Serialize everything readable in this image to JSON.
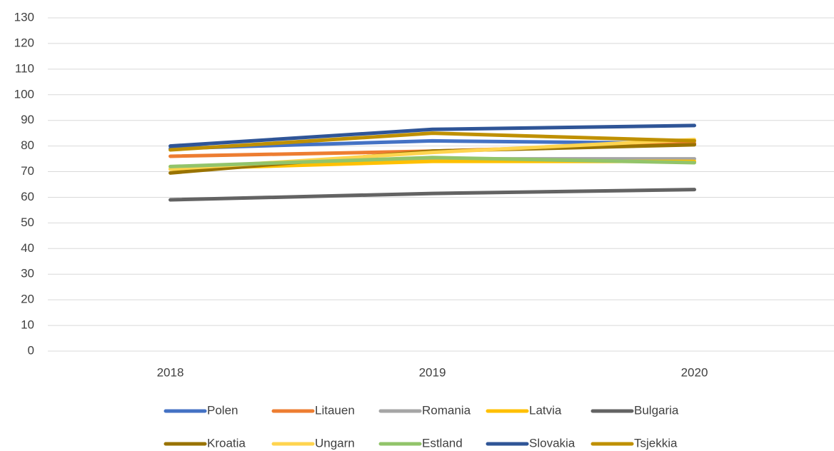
{
  "chart_data": {
    "type": "line",
    "categories": [
      "2018",
      "2019",
      "2020"
    ],
    "series": [
      {
        "name": "Polen",
        "color": "#4472c4",
        "values": [
          79,
          82,
          81
        ]
      },
      {
        "name": "Litauen",
        "color": "#ed7d31",
        "values": [
          76,
          78,
          81
        ]
      },
      {
        "name": "Romania",
        "color": "#a5a5a5",
        "values": [
          71,
          75,
          75
        ]
      },
      {
        "name": "Latvia",
        "color": "#ffc000",
        "values": [
          71,
          74,
          74
        ]
      },
      {
        "name": "Bulgaria",
        "color": "#636363",
        "values": [
          59,
          61.5,
          63
        ]
      },
      {
        "name": "Kroatia",
        "color": "#997300",
        "values": [
          69.5,
          78,
          80.5
        ]
      },
      {
        "name": "Ungarn",
        "color": "#ffd44f",
        "values": [
          71,
          77.5,
          82.5
        ]
      },
      {
        "name": "Estland",
        "color": "#92c46a",
        "values": [
          72,
          75.5,
          73.5
        ]
      },
      {
        "name": "Slovakia",
        "color": "#2f5597",
        "values": [
          80,
          86.5,
          88
        ]
      },
      {
        "name": "Tsjekkia",
        "color": "#bf9000",
        "values": [
          78.5,
          85,
          82
        ]
      }
    ],
    "ylim": [
      0,
      130
    ],
    "yticks": [
      0,
      10,
      20,
      30,
      40,
      50,
      60,
      70,
      80,
      90,
      100,
      110,
      120,
      130
    ],
    "grid": true,
    "legend": "bottom"
  }
}
